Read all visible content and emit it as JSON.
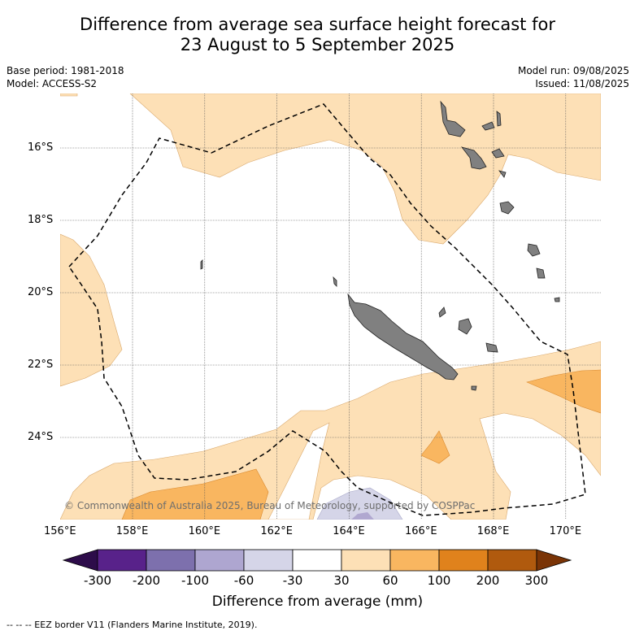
{
  "title_line1": "Difference from average sea surface height forecast for",
  "title_line2": "23 August to 5 September 2025",
  "base_period": "Base period: 1981-2018",
  "model": "Model: ACCESS-S2",
  "model_run": "Model run: 09/08/2025",
  "issued": "Issued: 11/08/2025",
  "copyright": "© Commonwealth of Australia 2025, Bureau of Meteorology, supported by COSPPac",
  "lat_labels": [
    "16°S",
    "18°S",
    "20°S",
    "22°S",
    "24°S"
  ],
  "lon_labels": [
    "156°E",
    "158°E",
    "160°E",
    "162°E",
    "164°E",
    "166°E",
    "168°E",
    "170°E"
  ],
  "colorbar_labels": [
    "-300",
    "-200",
    "-100",
    "-60",
    "-30",
    "30",
    "60",
    "100",
    "200",
    "300"
  ],
  "colorbar_title": "Difference from average (mm)",
  "colors": {
    "land": "#808080",
    "neg_low": "#d5d5e8",
    "neg_mid": "#b0a8d0",
    "pos_low": "#fde0b6",
    "pos_mid": "#f9b660",
    "pos_high": "#e0821c",
    "grid": "#555555"
  },
  "colorbar_colors": [
    "#2d0c4a",
    "#58228a",
    "#7d70ad",
    "#aea6d0",
    "#d5d5e8",
    "#ffffff",
    "#fde0b6",
    "#f9b660",
    "#e0821c",
    "#b05a0e",
    "#7a3406"
  ],
  "eez_note": "--  --  -- EEZ border V11 (Flanders Marine Institute, 2019)."
}
